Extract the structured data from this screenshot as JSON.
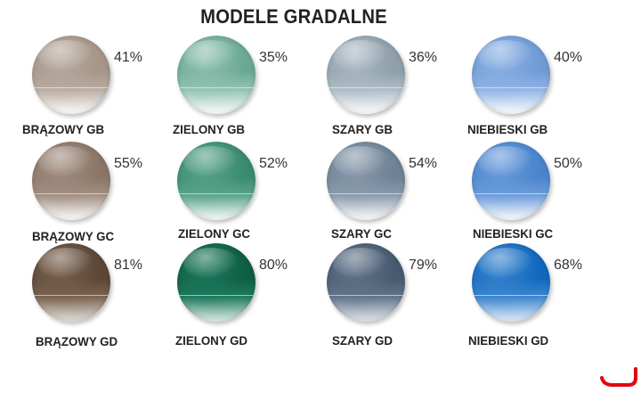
{
  "title": "MODELE GRADALNE",
  "lenses": [
    {
      "name": "BRĄZOWY GB",
      "percent": "41%",
      "colors": [
        "#a69588",
        "#b9aba0",
        "#ffffff"
      ]
    },
    {
      "name": "ZIELONY GB",
      "percent": "35%",
      "colors": [
        "#6aa893",
        "#91c3b1",
        "#ffffff"
      ]
    },
    {
      "name": "SZARY GB",
      "percent": "36%",
      "colors": [
        "#8e9faa",
        "#aebcc5",
        "#ffffff"
      ]
    },
    {
      "name": "NIEBIESKI GB",
      "percent": "40%",
      "colors": [
        "#6e9bd6",
        "#8fb3e4",
        "#ffffff"
      ]
    },
    {
      "name": "BRĄZOWY GC",
      "percent": "55%",
      "colors": [
        "#8a7566",
        "#a39082",
        "#ffffff"
      ]
    },
    {
      "name": "ZIELONY GC",
      "percent": "52%",
      "colors": [
        "#3a8a70",
        "#5aa58b",
        "#ffffff"
      ]
    },
    {
      "name": "SZARY GC",
      "percent": "54%",
      "colors": [
        "#6d8296",
        "#8b9cad",
        "#ffffff"
      ]
    },
    {
      "name": "NIEBIESKI GC",
      "percent": "50%",
      "colors": [
        "#4a84cc",
        "#6c9ddb",
        "#ffffff"
      ]
    },
    {
      "name": "BRĄZOWY GD",
      "percent": "81%",
      "colors": [
        "#5c4636",
        "#7a6350",
        "#e6e2de"
      ]
    },
    {
      "name": "ZIELONY GD",
      "percent": "80%",
      "colors": [
        "#0e5e44",
        "#1f7a5d",
        "#e3efe9"
      ]
    },
    {
      "name": "SZARY GD",
      "percent": "79%",
      "colors": [
        "#475a70",
        "#62758b",
        "#e4e9ee"
      ]
    },
    {
      "name": "NIEBIESKI GD",
      "percent": "68%",
      "colors": [
        "#1068bd",
        "#3c86cf",
        "#e6eef8"
      ]
    }
  ],
  "logo_color": "#e30613"
}
